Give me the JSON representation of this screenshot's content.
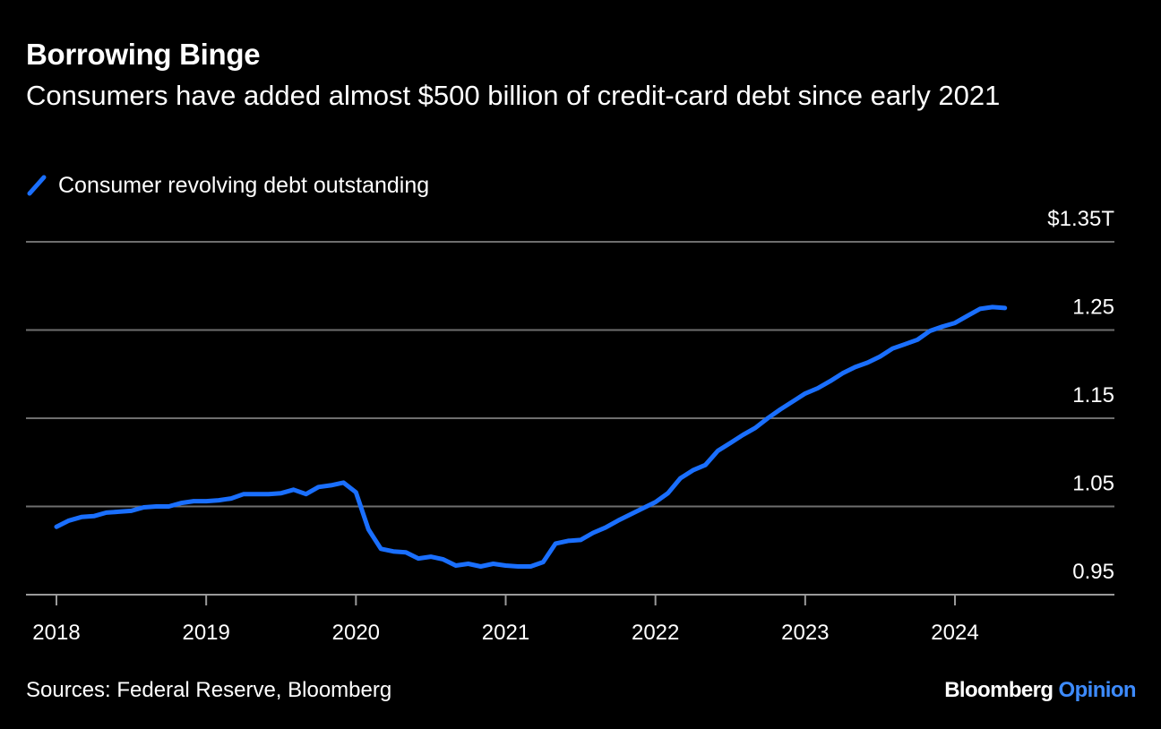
{
  "colors": {
    "background": "#000000",
    "line": "#1a6fff",
    "grid": "#6e6e6e",
    "text": "#ffffff",
    "brand_accent": "#3d8bff"
  },
  "footer": {
    "source": "Sources: Federal Reserve, Bloomberg",
    "brand_main": "Bloomberg",
    "brand_accent": "Opinion"
  },
  "chart_data": {
    "type": "line",
    "title": "Borrowing Binge",
    "subtitle": "Consumers have added almost $500 billion of credit-card debt since early 2021",
    "xlabel": "",
    "ylabel": "",
    "legend": "top-left",
    "grid": true,
    "xlim": [
      "2017-12",
      "2024-12"
    ],
    "ylim": [
      0.95,
      1.35
    ],
    "y_ticks": [
      {
        "value": 0.95,
        "label": "0.95"
      },
      {
        "value": 1.05,
        "label": "1.05"
      },
      {
        "value": 1.15,
        "label": "1.15"
      },
      {
        "value": 1.25,
        "label": "1.25"
      },
      {
        "value": 1.35,
        "label": "$1.35T"
      }
    ],
    "x_ticks": [
      "2018",
      "2019",
      "2020",
      "2021",
      "2022",
      "2023",
      "2024"
    ],
    "series": [
      {
        "name": "Consumer revolving debt outstanding",
        "x": [
          "2018-01",
          "2018-02",
          "2018-03",
          "2018-04",
          "2018-05",
          "2018-06",
          "2018-07",
          "2018-08",
          "2018-09",
          "2018-10",
          "2018-11",
          "2018-12",
          "2019-01",
          "2019-02",
          "2019-03",
          "2019-04",
          "2019-05",
          "2019-06",
          "2019-07",
          "2019-08",
          "2019-09",
          "2019-10",
          "2019-11",
          "2019-12",
          "2020-01",
          "2020-02",
          "2020-03",
          "2020-04",
          "2020-05",
          "2020-06",
          "2020-07",
          "2020-08",
          "2020-09",
          "2020-10",
          "2020-11",
          "2020-12",
          "2021-01",
          "2021-02",
          "2021-03",
          "2021-04",
          "2021-05",
          "2021-06",
          "2021-07",
          "2021-08",
          "2021-09",
          "2021-10",
          "2021-11",
          "2021-12",
          "2022-01",
          "2022-02",
          "2022-03",
          "2022-04",
          "2022-05",
          "2022-06",
          "2022-07",
          "2022-08",
          "2022-09",
          "2022-10",
          "2022-11",
          "2022-12",
          "2023-01",
          "2023-02",
          "2023-03",
          "2023-04",
          "2023-05",
          "2023-06",
          "2023-07",
          "2023-08",
          "2023-09",
          "2023-10",
          "2023-11",
          "2023-12",
          "2024-01",
          "2024-02",
          "2024-03",
          "2024-04",
          "2024-05"
        ],
        "y": [
          1.027,
          1.034,
          1.038,
          1.039,
          1.043,
          1.044,
          1.045,
          1.049,
          1.05,
          1.05,
          1.054,
          1.056,
          1.056,
          1.057,
          1.059,
          1.064,
          1.064,
          1.064,
          1.065,
          1.069,
          1.064,
          1.072,
          1.074,
          1.077,
          1.066,
          1.024,
          1.002,
          0.999,
          0.998,
          0.991,
          0.993,
          0.99,
          0.983,
          0.985,
          0.982,
          0.985,
          0.983,
          0.982,
          0.982,
          0.987,
          1.008,
          1.011,
          1.012,
          1.02,
          1.026,
          1.034,
          1.041,
          1.048,
          1.055,
          1.065,
          1.082,
          1.091,
          1.097,
          1.113,
          1.122,
          1.131,
          1.139,
          1.15,
          1.16,
          1.169,
          1.178,
          1.184,
          1.192,
          1.201,
          1.208,
          1.213,
          1.22,
          1.229,
          1.234,
          1.239,
          1.249,
          1.254,
          1.258,
          1.266,
          1.274,
          1.276,
          1.275
        ]
      }
    ]
  }
}
